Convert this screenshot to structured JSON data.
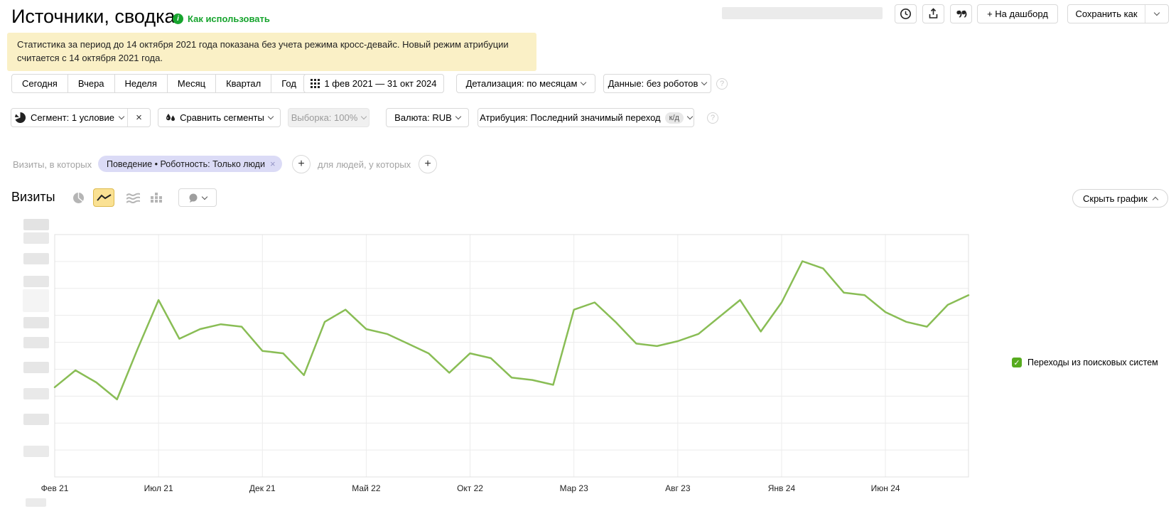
{
  "header": {
    "title": "Источники, сводка",
    "usage_link": "Как использовать",
    "dashboard_button": "+ На дашборд",
    "save_as_button": "Сохранить как",
    "toolbar_icons": [
      "clock-icon",
      "export-icon",
      "comments-icon"
    ]
  },
  "notice": {
    "text": "Статистика за период до 14 октября 2021 года показана без учета режима кросс-девайс. Новый режим атрибуции считается с 14 октября 2021 года."
  },
  "period_bar": {
    "presets": [
      "Сегодня",
      "Вчера",
      "Неделя",
      "Месяц",
      "Квартал",
      "Год"
    ],
    "date_range": "1 фев 2021 — 31 окт 2024",
    "detail": "Детализация: по месяцам",
    "data_mode": "Данные: без роботов",
    "help_icon": "?"
  },
  "segment_bar": {
    "segment": "Сегмент: 1 условие",
    "segment_clear": "×",
    "compare": "Сравнить сегменты",
    "sampling": "Выборка: 100%",
    "currency": "Валюта: RUB",
    "attribution": "Атрибуция: Последний значимый переход",
    "attribution_badge": "к/д",
    "help_icon": "?"
  },
  "filter_bar": {
    "visits_label": "Визиты, в которых",
    "chip": "Поведение • Роботность: Только люди",
    "chip_close": "×",
    "people_label": "для людей, у которых",
    "add_button": "+"
  },
  "chart_section": {
    "title": "Визиты",
    "hide_button": "Скрыть график",
    "legend_item": "Переходы из поисковых систем",
    "legend_color": "#57ab1f",
    "type_icons": [
      "pie-chart-icon",
      "line-chart-icon",
      "stacked-area-icon",
      "columns-icon",
      "bubble-dropdown-icon"
    ]
  },
  "chart_data": {
    "type": "line",
    "title": "Визиты",
    "x_unit": "month",
    "x_range": [
      "Фев 2021",
      "Окт 2024"
    ],
    "x_tick_labels": [
      "Фев 21",
      "Июл 21",
      "Дек 21",
      "Май 22",
      "Окт 22",
      "Мар 23",
      "Авг 23",
      "Янв 24",
      "Июн 24"
    ],
    "x_tick_positions": [
      0,
      5,
      10,
      15,
      20,
      25,
      30,
      35,
      40
    ],
    "y_axis": "redacted (values blurred in source)",
    "ylim": [
      0,
      100
    ],
    "grid": true,
    "legend_position": "right",
    "series": [
      {
        "name": "Переходы из поисковых систем",
        "color": "#89bd55",
        "values": [
          37,
          44,
          39,
          32,
          53,
          73,
          57,
          61,
          63,
          62,
          52,
          51,
          42,
          64,
          69,
          61,
          59,
          55,
          51,
          43,
          51,
          49,
          41,
          40,
          38,
          69,
          72,
          64,
          55,
          54,
          56,
          59,
          66,
          73,
          60,
          72,
          89,
          86,
          76,
          75,
          68,
          64,
          62,
          71,
          75
        ]
      }
    ]
  },
  "colors": {
    "accent_green_link": "#17a42e",
    "banner_bg": "#faf0c6",
    "chip_bg": "#dbdbf6",
    "selected_icon_bg": "#fae193",
    "line_green": "#89bd55",
    "checkbox_green": "#57ab1f"
  }
}
